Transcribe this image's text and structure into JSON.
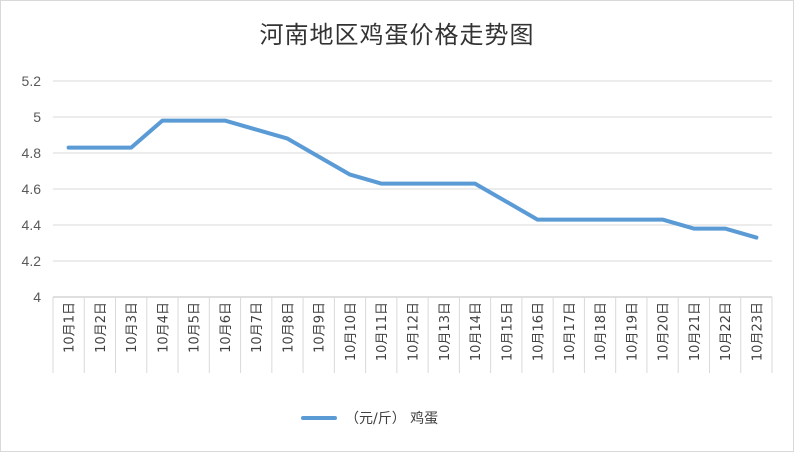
{
  "chart_data": {
    "type": "line",
    "title": "河南地区鸡蛋价格走势图",
    "categories": [
      "10月1日",
      "10月2日",
      "10月3日",
      "10月4日",
      "10月5日",
      "10月6日",
      "10月7日",
      "10月8日",
      "10月9日",
      "10月10日",
      "10月11日",
      "10月12日",
      "10月13日",
      "10月14日",
      "10月15日",
      "10月16日",
      "10月17日",
      "10月18日",
      "10月19日",
      "10月20日",
      "10月21日",
      "10月22日",
      "10月23日"
    ],
    "series": [
      {
        "name": "（元/斤） 鸡蛋",
        "color": "#5b9bd5",
        "values": [
          4.83,
          4.83,
          4.83,
          4.98,
          4.98,
          4.98,
          4.93,
          4.88,
          4.78,
          4.68,
          4.63,
          4.63,
          4.63,
          4.63,
          4.53,
          4.43,
          4.43,
          4.43,
          4.43,
          4.43,
          4.38,
          4.38,
          4.33
        ]
      }
    ],
    "ylim": [
      4,
      5.2
    ],
    "yticks": [
      4,
      4.2,
      4.4,
      4.6,
      4.8,
      5,
      5.2
    ],
    "ytick_labels": [
      "4",
      "4.2",
      "4.4",
      "4.6",
      "4.8",
      "5",
      "5.2"
    ],
    "grid": true,
    "legend": "bottom",
    "xlabel": "",
    "ylabel": ""
  }
}
